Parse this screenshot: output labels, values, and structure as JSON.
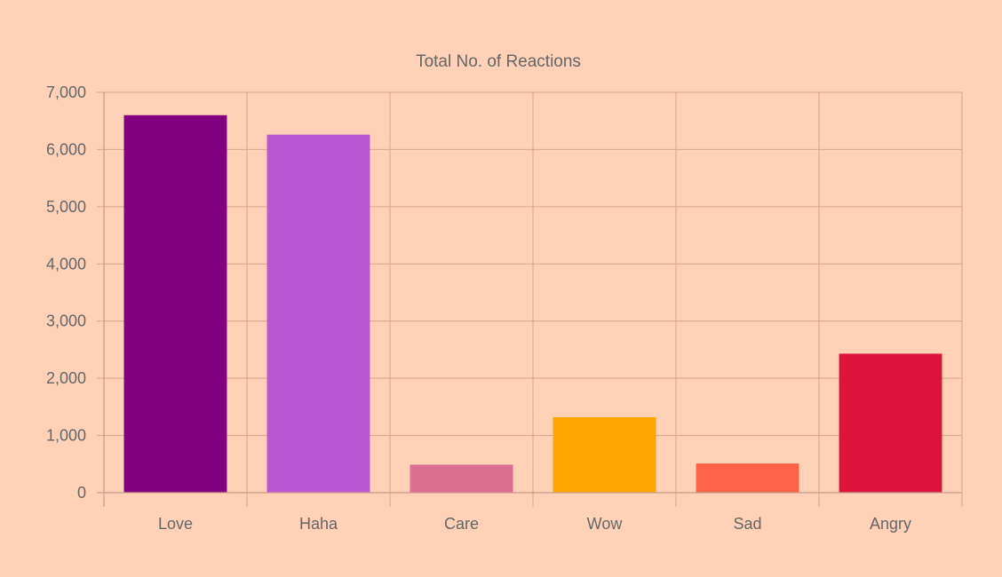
{
  "chart_data": {
    "type": "bar",
    "title": "Total No. of Reactions",
    "xlabel": "",
    "ylabel": "",
    "categories": [
      "Love",
      "Haha",
      "Care",
      "Wow",
      "Sad",
      "Angry"
    ],
    "values": [
      6600,
      6260,
      490,
      1320,
      510,
      2430
    ],
    "colors": [
      "#800080",
      "#ba55d3",
      "#db7093",
      "#ffa500",
      "#ff6347",
      "#dc143c"
    ],
    "ylim": [
      0,
      7000
    ],
    "yticks": [
      0,
      1000,
      2000,
      3000,
      4000,
      5000,
      6000,
      7000
    ],
    "ytick_labels": [
      "0",
      "1,000",
      "2,000",
      "3,000",
      "4,000",
      "5,000",
      "6,000",
      "7,000"
    ],
    "grid": true,
    "legend": "none",
    "background": "#ffd2b8",
    "grid_color": "#d9a28e",
    "text_color": "#666666"
  }
}
